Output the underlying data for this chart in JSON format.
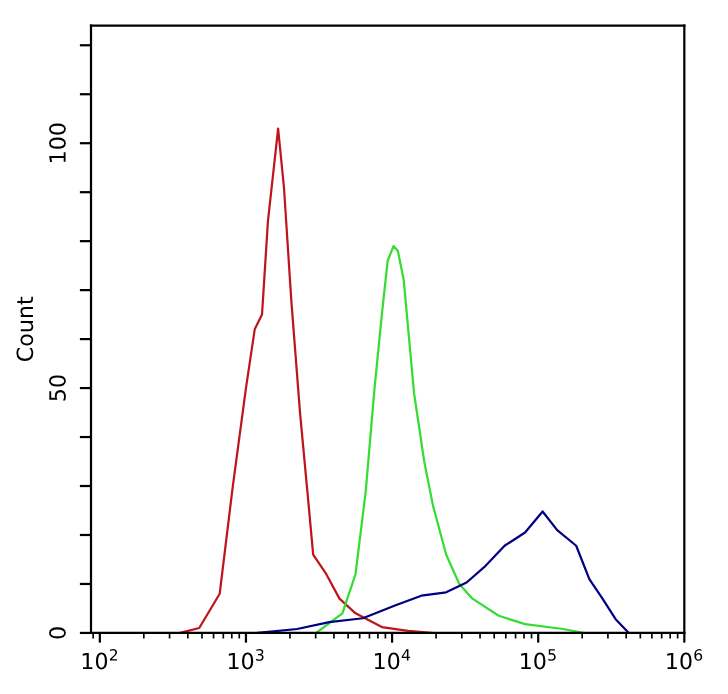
{
  "chart_data": {
    "type": "line",
    "ylabel": "Count",
    "log": "x",
    "grid": false,
    "marker": "none",
    "line_style": "solid",
    "xlim": [
      87,
      1000000
    ],
    "ylim": [
      0,
      124
    ],
    "xticks": [
      {
        "value": 100,
        "label": "10$^{2}$"
      },
      {
        "value": 1000,
        "label": "10$^{3}$"
      },
      {
        "value": 10000,
        "label": "10$^{4}$"
      },
      {
        "value": 100000,
        "label": "10$^{5}$"
      },
      {
        "value": 1000000,
        "label": "10$^{6}$"
      }
    ],
    "yticks": [
      0,
      {
        "value": 10,
        "label": null
      },
      {
        "value": 20,
        "label": null
      },
      {
        "value": 30,
        "label": null
      },
      {
        "value": 40,
        "label": null
      },
      50,
      {
        "value": 60,
        "label": null
      },
      {
        "value": 70,
        "label": null
      },
      {
        "value": 80,
        "label": null
      },
      {
        "value": 90,
        "label": null
      },
      100,
      {
        "value": 110,
        "label": null
      },
      {
        "value": 120,
        "label": null
      }
    ],
    "series": [
      {
        "color": "#c0141c",
        "x": [
          355,
          479,
          661,
          813,
          1000,
          1148,
          1288,
          1413,
          1660,
          1820,
          2042,
          2344,
          2630,
          2884,
          3548,
          4365,
          5623,
          8511,
          12880,
          19050
        ],
        "values": [
          0,
          1,
          8,
          30,
          50,
          62,
          65,
          84,
          103,
          91,
          68,
          45,
          29,
          16,
          12,
          7,
          4,
          1.2,
          0.4,
          0
        ]
      },
      {
        "color": "#33dd33",
        "x": [
          3020,
          4571,
          5623,
          6607,
          7586,
          8511,
          9333,
          10230,
          10960,
          12020,
          14130,
          16600,
          19050,
          23440,
          28840,
          35480,
          53700,
          81280,
          147900,
          204200
        ],
        "values": [
          0,
          4,
          12,
          29,
          50,
          65,
          76,
          79,
          78,
          72,
          49,
          35,
          26,
          16,
          10,
          7,
          3.5,
          1.8,
          0.8,
          0
        ]
      },
      {
        "color": "#000080",
        "x": [
          1202,
          2239,
          3715,
          6310,
          10470,
          15850,
          23440,
          32360,
          43650,
          58880,
          81280,
          107200,
          134900,
          182000,
          223900,
          275400,
          338800,
          416900
        ],
        "values": [
          0,
          0.8,
          2.2,
          3,
          5.6,
          7.6,
          8.3,
          10.3,
          13.7,
          17.8,
          20.5,
          24.8,
          21,
          17.8,
          11,
          7,
          2.8,
          0
        ]
      }
    ]
  }
}
